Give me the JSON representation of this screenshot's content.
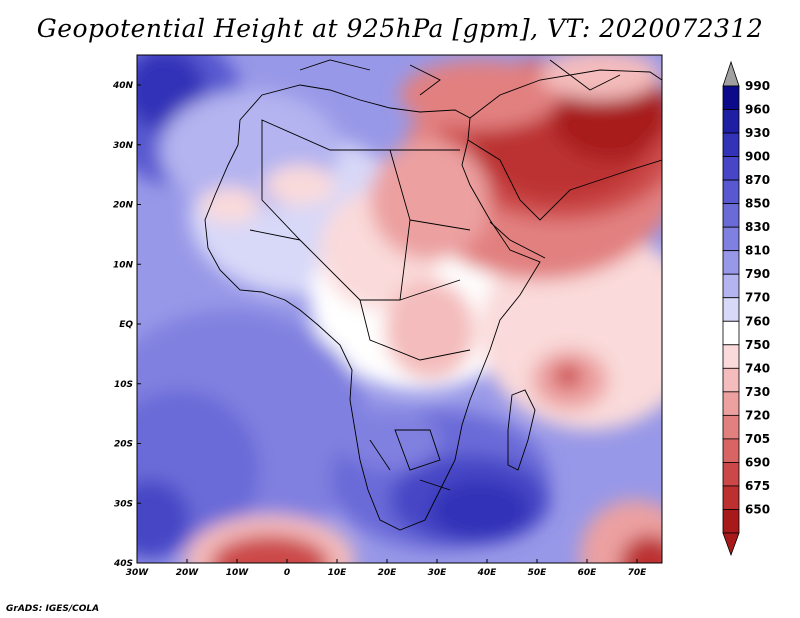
{
  "title": "Geopotential Height at 925hPa [gpm], VT: 2020072312",
  "credit": "GrADS: IGES/COLA",
  "lon_ticks": [
    "30W",
    "20W",
    "10W",
    "0",
    "10E",
    "20E",
    "30E",
    "40E",
    "50E",
    "60E",
    "70E"
  ],
  "lat_ticks": [
    "40N",
    "30N",
    "20N",
    "10N",
    "EQ",
    "10S",
    "20S",
    "30S",
    "40S"
  ],
  "colorbar": {
    "labels": [
      "990",
      "960",
      "930",
      "900",
      "870",
      "850",
      "830",
      "810",
      "790",
      "770",
      "760",
      "750",
      "740",
      "730",
      "720",
      "705",
      "690",
      "675",
      "650"
    ],
    "colors": [
      "#0a0a8a",
      "#1f1fa4",
      "#3333b8",
      "#4646c6",
      "#5858d0",
      "#6b6bd8",
      "#8080e0",
      "#9898e8",
      "#b4b4f0",
      "#d8d8f8",
      "#ffffff",
      "#fadada",
      "#f4bcbc",
      "#eca0a0",
      "#e28080",
      "#d86464",
      "#cc4848",
      "#bc3030",
      "#a81a1a"
    ],
    "top_arrow_color": "#a0a0a0",
    "bottom_arrow_color": "#a81a1a"
  }
}
